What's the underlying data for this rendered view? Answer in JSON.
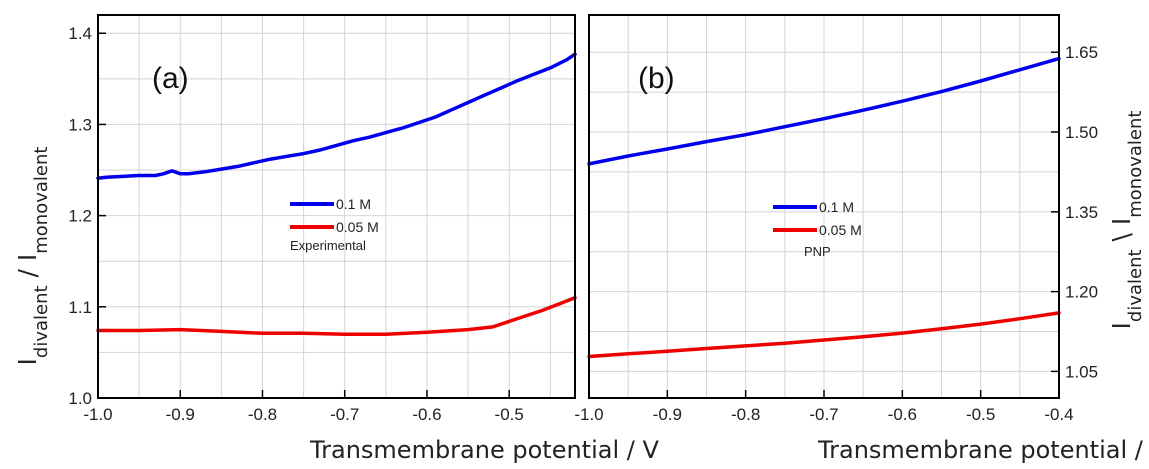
{
  "chart_data": [
    {
      "type": "line",
      "panel_label": "(a)",
      "xlabel": "Transmembrane potential / V",
      "ylabel_main": "I",
      "ylabel_sub1": "divalent",
      "ylabel_sep": " / I",
      "ylabel_sub2": "monovalent",
      "xlim": [
        -1.0,
        -0.42
      ],
      "ylim": [
        1.0,
        1.42
      ],
      "x_ticks": [
        -1.0,
        -0.9,
        -0.8,
        -0.7,
        -0.6,
        -0.5
      ],
      "x_tick_labels": [
        "-1.0",
        "-0.9",
        "-0.8",
        "-0.7",
        "-0.6",
        "-0.5"
      ],
      "y_ticks": [
        1.0,
        1.1,
        1.2,
        1.3,
        1.4
      ],
      "y_tick_labels": [
        "1.0",
        "1.1",
        "1.2",
        "1.3",
        "1.4"
      ],
      "y_axis_side": "left",
      "grid": true,
      "legend_note": "Experimental",
      "series": [
        {
          "name": "0.1 M",
          "color": "#0000ee",
          "x": [
            -1.0,
            -0.99,
            -0.97,
            -0.95,
            -0.93,
            -0.92,
            -0.91,
            -0.9,
            -0.89,
            -0.87,
            -0.85,
            -0.83,
            -0.81,
            -0.79,
            -0.77,
            -0.75,
            -0.73,
            -0.71,
            -0.69,
            -0.67,
            -0.65,
            -0.63,
            -0.61,
            -0.59,
            -0.57,
            -0.55,
            -0.53,
            -0.51,
            -0.49,
            -0.47,
            -0.45,
            -0.43,
            -0.42
          ],
          "y": [
            1.241,
            1.242,
            1.243,
            1.244,
            1.244,
            1.246,
            1.249,
            1.246,
            1.246,
            1.248,
            1.251,
            1.254,
            1.258,
            1.262,
            1.265,
            1.268,
            1.272,
            1.277,
            1.282,
            1.286,
            1.291,
            1.296,
            1.302,
            1.308,
            1.316,
            1.324,
            1.332,
            1.34,
            1.348,
            1.355,
            1.362,
            1.371,
            1.377
          ]
        },
        {
          "name": "0.05 M",
          "color": "#ee0000",
          "x": [
            -1.0,
            -0.95,
            -0.9,
            -0.85,
            -0.8,
            -0.75,
            -0.7,
            -0.65,
            -0.6,
            -0.55,
            -0.52,
            -0.5,
            -0.48,
            -0.46,
            -0.44,
            -0.42
          ],
          "y": [
            1.074,
            1.074,
            1.075,
            1.073,
            1.071,
            1.071,
            1.07,
            1.07,
            1.072,
            1.075,
            1.078,
            1.084,
            1.09,
            1.096,
            1.103,
            1.11
          ]
        }
      ]
    },
    {
      "type": "line",
      "panel_label": "(b)",
      "xlabel": "Transmembrane potential / V",
      "ylabel_main": "I",
      "ylabel_sub1": "divalent",
      "ylabel_sep": " \\ I",
      "ylabel_sub2": "monovalent",
      "xlim": [
        -1.0,
        -0.4
      ],
      "ylim": [
        1.0,
        1.72
      ],
      "x_ticks": [
        -1.0,
        -0.9,
        -0.8,
        -0.7,
        -0.6,
        -0.5,
        -0.4
      ],
      "x_tick_labels": [
        "-1.0",
        "-0.9",
        "-0.8",
        "-0.7",
        "-0.6",
        "-0.5",
        "-0.4"
      ],
      "y_ticks": [
        1.05,
        1.2,
        1.35,
        1.5,
        1.65
      ],
      "y_tick_labels": [
        "1.05",
        "1.20",
        "1.35",
        "1.50",
        "1.65"
      ],
      "y_axis_side": "right",
      "grid": true,
      "legend_note": "PNP",
      "series": [
        {
          "name": "0.1 M",
          "color": "#0000ee",
          "x": [
            -1.0,
            -0.95,
            -0.9,
            -0.85,
            -0.8,
            -0.75,
            -0.7,
            -0.65,
            -0.6,
            -0.55,
            -0.5,
            -0.45,
            -0.4
          ],
          "y": [
            1.44,
            1.455,
            1.468,
            1.482,
            1.495,
            1.51,
            1.525,
            1.541,
            1.558,
            1.576,
            1.596,
            1.617,
            1.638
          ]
        },
        {
          "name": "0.05 M",
          "color": "#ee0000",
          "x": [
            -1.0,
            -0.95,
            -0.9,
            -0.85,
            -0.8,
            -0.75,
            -0.7,
            -0.65,
            -0.6,
            -0.55,
            -0.5,
            -0.45,
            -0.4
          ],
          "y": [
            1.078,
            1.083,
            1.088,
            1.093,
            1.098,
            1.103,
            1.109,
            1.115,
            1.122,
            1.13,
            1.139,
            1.149,
            1.16
          ]
        }
      ]
    }
  ]
}
